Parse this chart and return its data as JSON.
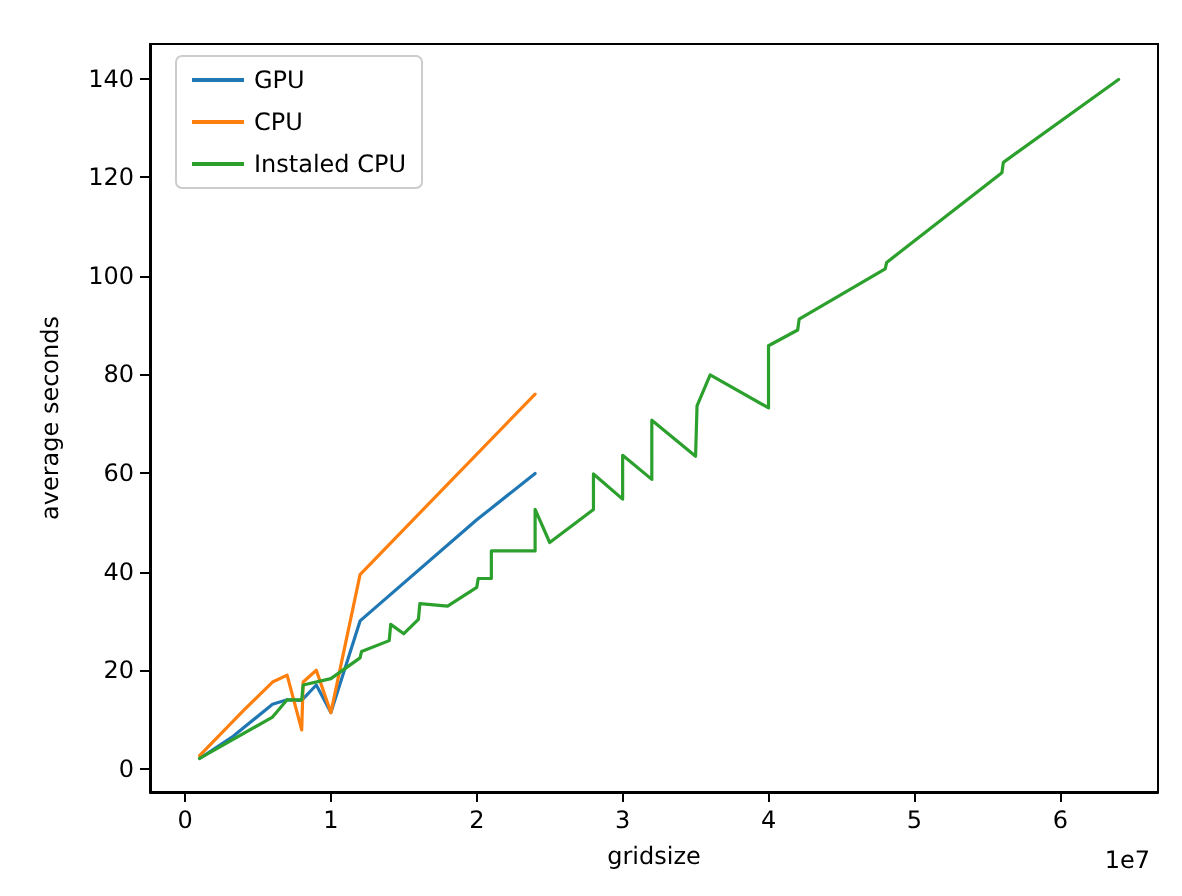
{
  "chart_data": {
    "type": "line",
    "xlabel": "gridsize",
    "ylabel": "average seconds",
    "annotations": [
      "1e7"
    ],
    "xlim": [
      -0.24,
      6.67
    ],
    "ylim": [
      -4.7,
      147
    ],
    "xticks": [
      0,
      1,
      2,
      3,
      4,
      5,
      6
    ],
    "yticks": [
      0,
      20,
      40,
      60,
      80,
      100,
      120,
      140
    ],
    "grid": false,
    "legend": "top left",
    "marker": "none",
    "line_style": "solid",
    "series": [
      {
        "name": "GPU",
        "color": "#1f77b4",
        "x": [
          0.1,
          0.33,
          0.6,
          0.7,
          0.8,
          0.9,
          1.0,
          1.2,
          2.0,
          2.4
        ],
        "values": [
          2.1,
          6.6,
          13.1,
          14,
          13.9,
          17,
          11.4,
          30,
          50.5,
          59.9
        ]
      },
      {
        "name": "CPU",
        "color": "#ff7f0e",
        "x": [
          0.1,
          0.4,
          0.6,
          0.7,
          0.8,
          0.81,
          0.9,
          1.0,
          1.2,
          2.4
        ],
        "values": [
          2.7,
          11.8,
          17.6,
          19,
          7.9,
          17.6,
          20,
          11.4,
          39.4,
          76
        ]
      },
      {
        "name": "Instaled CPU",
        "color": "#2ca02c",
        "x": [
          0.1,
          0.6,
          0.7,
          0.8,
          0.81,
          1.0,
          1.2,
          1.21,
          1.4,
          1.41,
          1.5,
          1.6,
          1.61,
          1.8,
          2.0,
          2.01,
          2.1,
          2.1,
          2.4,
          2.4,
          2.5,
          2.8,
          2.8,
          3.0,
          3.0,
          3.2,
          3.2,
          3.5,
          3.51,
          3.6,
          4.0,
          4.0,
          4.2,
          4.21,
          4.8,
          4.81,
          5.6,
          5.61,
          6.4
        ],
        "values": [
          2.1,
          10.5,
          14,
          14,
          17,
          18.3,
          22.5,
          23.8,
          26,
          29.3,
          27.4,
          30.3,
          33.5,
          33,
          36.8,
          38.6,
          38.6,
          44.2,
          44.2,
          52.6,
          45.9,
          52.6,
          59.8,
          54.7,
          63.6,
          58.7,
          70.7,
          63.4,
          73.6,
          79.9,
          73.2,
          85.8,
          89,
          91.2,
          101.4,
          102.7,
          120.9,
          123,
          139.8
        ]
      }
    ]
  }
}
